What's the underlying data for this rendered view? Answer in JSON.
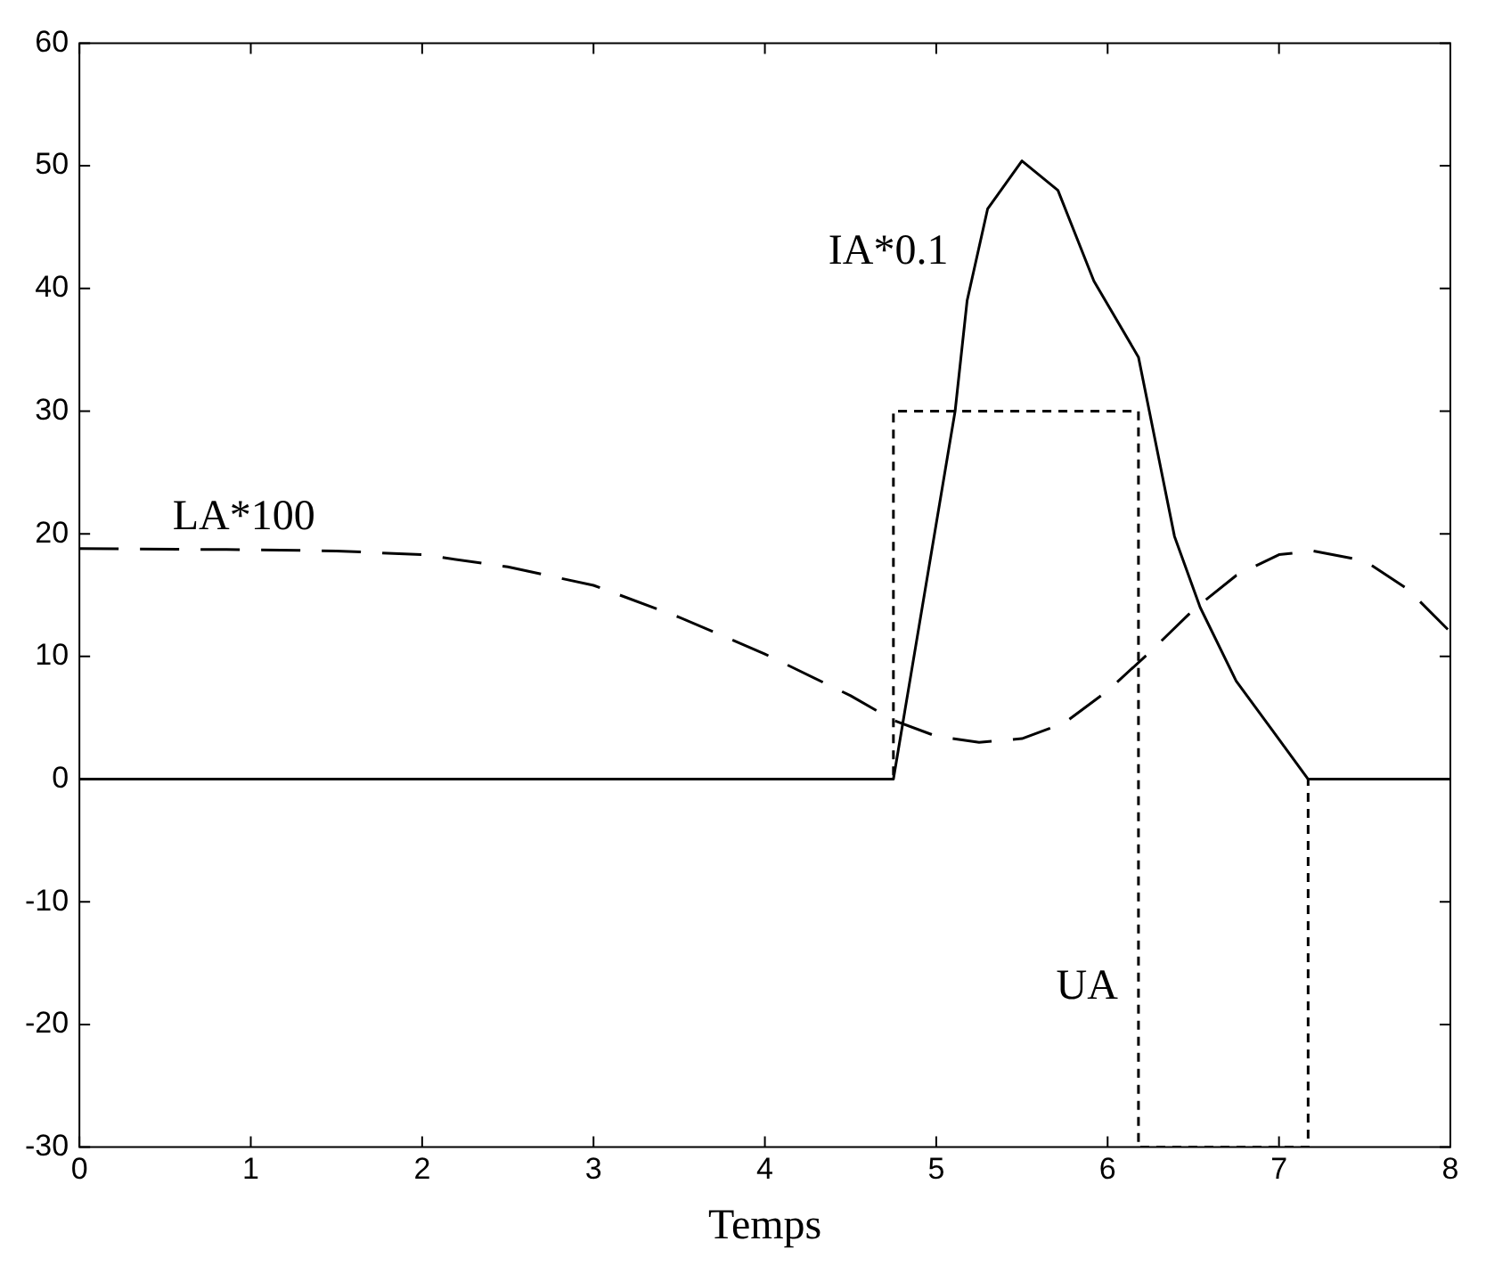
{
  "chart_data": {
    "type": "line",
    "xlabel": "Temps",
    "xlim": [
      0,
      8
    ],
    "xticks": [
      0,
      1,
      2,
      3,
      4,
      5,
      6,
      7,
      8
    ],
    "ylim": [
      -30,
      60
    ],
    "yticks": [
      -30,
      -20,
      -10,
      0,
      10,
      20,
      30,
      40,
      50,
      60
    ],
    "grid": false,
    "legend": false,
    "marker": "none",
    "series": [
      {
        "name": "IA*0.1",
        "color": "#000000",
        "line_style": "solid",
        "x": [
          0,
          4.75,
          5.11,
          5.18,
          5.3,
          5.5,
          5.71,
          5.92,
          6.18,
          6.39,
          6.54,
          6.75,
          6.96,
          7.17,
          8
        ],
        "values": [
          0,
          0,
          30,
          39,
          46.5,
          50.4,
          48,
          40.6,
          34.4,
          19.8,
          14,
          8,
          4,
          0,
          0
        ]
      },
      {
        "name": "LA*100",
        "color": "#000000",
        "line_style": "dashed",
        "x": [
          0,
          1,
          1.5,
          2,
          2.5,
          3,
          3.5,
          4,
          4.5,
          4.75,
          5,
          5.25,
          5.5,
          5.75,
          6,
          6.25,
          6.5,
          6.75,
          7,
          7.2,
          7.5,
          7.75,
          8
        ],
        "values": [
          18.8,
          18.7,
          18.6,
          18.3,
          17.3,
          15.8,
          13.2,
          10.2,
          6.8,
          4.8,
          3.5,
          3,
          3.3,
          4.6,
          7.2,
          10.4,
          13.8,
          16.6,
          18.3,
          18.6,
          17.8,
          15.5,
          12
        ]
      },
      {
        "name": "UA",
        "color": "#000000",
        "line_style": "dotted",
        "x": [
          0,
          4.75,
          4.75,
          6.18,
          6.18,
          7.17,
          7.17,
          8
        ],
        "values": [
          0,
          0,
          30,
          30,
          -30,
          -30,
          0,
          0
        ]
      }
    ]
  }
}
